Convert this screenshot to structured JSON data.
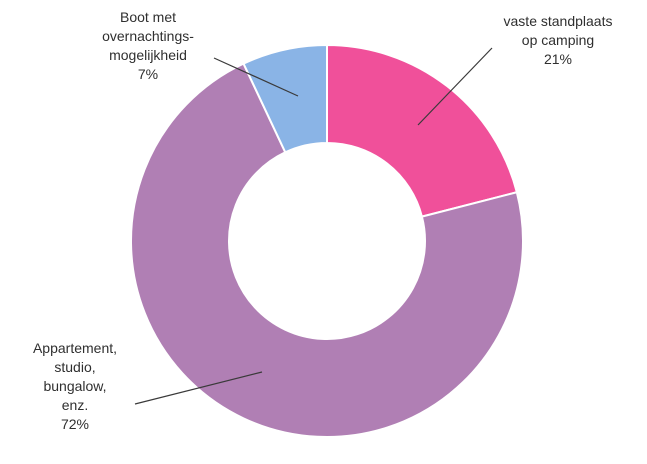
{
  "chart_data": {
    "type": "pie",
    "donut": true,
    "title": "",
    "start_angle_deg": 0,
    "direction": "clockwise",
    "slices": [
      {
        "label_lines": [
          "vaste standplaats",
          "op camping"
        ],
        "percent_label": "21%",
        "value": 21,
        "color": "#f0509a"
      },
      {
        "label_lines": [
          "Appartement,",
          "studio,",
          "bungalow,",
          "enz."
        ],
        "percent_label": "72%",
        "value": 72,
        "color": "#b07fb4"
      },
      {
        "label_lines": [
          "Boot met",
          "overnachtings-",
          "mogelijkheid"
        ],
        "percent_label": "7%",
        "value": 7,
        "color": "#8ab4e6"
      }
    ]
  }
}
